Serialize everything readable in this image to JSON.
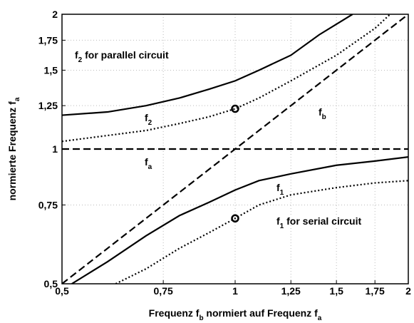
{
  "chart_data": {
    "type": "line",
    "xlabel": [
      "Frequenz f",
      "b",
      " normiert auf Frequenz f",
      "a"
    ],
    "ylabel": [
      "normierte Frequenz f",
      "a"
    ],
    "xlog": true,
    "ylog": true,
    "grid": true,
    "xlim": [
      0.5,
      2
    ],
    "ylim": [
      0.5,
      2
    ],
    "xticks": [
      {
        "value": 0.5,
        "label": "0,5"
      },
      {
        "value": 0.75,
        "label": "0,75"
      },
      1,
      {
        "value": 1.25,
        "label": "1,25"
      },
      {
        "value": 1.5,
        "label": "1,5"
      },
      {
        "value": 1.75,
        "label": "1,75"
      },
      2
    ],
    "yticks": [
      {
        "value": 0.5,
        "label": "0,5"
      },
      {
        "value": 0.75,
        "label": "0,75"
      },
      1,
      {
        "value": 1.25,
        "label": "1,25"
      },
      {
        "value": 1.5,
        "label": "1,5"
      },
      {
        "value": 1.75,
        "label": "1,75"
      },
      2
    ],
    "series": [
      {
        "style": "solid",
        "color": "#000000",
        "x": [
          0.5,
          0.6,
          0.7,
          0.8,
          0.9,
          1,
          1.1,
          1.25,
          1.4,
          1.6
        ],
        "values": [
          1.19,
          1.21,
          1.25,
          1.3,
          1.36,
          1.42,
          1.5,
          1.62,
          1.8,
          2
        ]
      },
      {
        "style": "dotted",
        "color": "#000000",
        "x": [
          0.5,
          0.7,
          0.8,
          0.9,
          1,
          1.1,
          1.25,
          1.5,
          1.75,
          1.86
        ],
        "values": [
          1.04,
          1.1,
          1.14,
          1.18,
          1.23,
          1.3,
          1.42,
          1.62,
          1.86,
          2
        ]
      },
      {
        "style": "solid",
        "color": "#000000",
        "x": [
          0.52,
          0.6,
          0.7,
          0.8,
          0.9,
          1,
          1.1,
          1.25,
          1.5,
          1.75,
          2
        ],
        "values": [
          0.5,
          0.56,
          0.64,
          0.71,
          0.76,
          0.81,
          0.85,
          0.88,
          0.92,
          0.94,
          0.96
        ]
      },
      {
        "style": "dotted",
        "color": "#000000",
        "x": [
          0.62,
          0.7,
          0.8,
          0.9,
          1,
          1.1,
          1.25,
          1.5,
          1.75,
          2
        ],
        "values": [
          0.5,
          0.54,
          0.6,
          0.65,
          0.7,
          0.75,
          0.79,
          0.82,
          0.84,
          0.85
        ]
      },
      {
        "style": "dashed",
        "color": "#000000",
        "x": [
          0.5,
          2
        ],
        "values": [
          1,
          1
        ]
      },
      {
        "style": "dashed",
        "color": "#000000",
        "x": [
          0.5,
          2
        ],
        "values": [
          0.5,
          2
        ]
      }
    ],
    "markers": {
      "x": [
        1,
        1
      ],
      "values": [
        1.23,
        0.7
      ]
    },
    "annotations": [
      [
        "f",
        "2",
        " for parallel circuit"
      ],
      [
        "f",
        "2"
      ],
      [
        "f",
        "b"
      ],
      [
        "f",
        "a"
      ],
      [
        "f",
        "1"
      ],
      [
        "f",
        "1",
        " for serial circuit"
      ]
    ]
  }
}
